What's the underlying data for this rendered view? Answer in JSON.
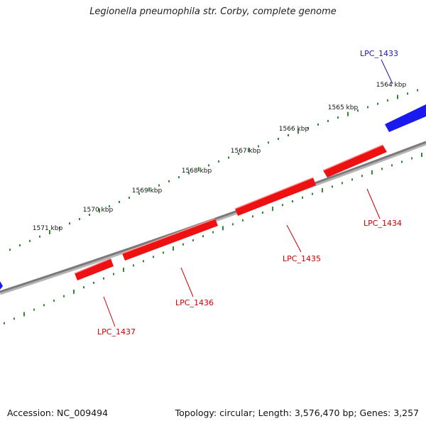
{
  "title": "Legionella pneumophila str. Corby, complete genome",
  "footer": {
    "accession": "Accession: NC_009494",
    "summary": "Topology: circular; Length: 3,576,470 bp; Genes: 3,257"
  },
  "colors": {
    "backbone": "#7a7a7a",
    "forward_gene": "#1a1aee",
    "reverse_gene": "#ee1111",
    "forward_label": "#1a1aaa",
    "reverse_label": "#cc0000",
    "tick_marks": "#2e8b2e"
  },
  "scale_labels": [
    {
      "text": "1564 kbp"
    },
    {
      "text": "1565 kbp"
    },
    {
      "text": "1566 kbp"
    },
    {
      "text": "1567 kbp"
    },
    {
      "text": "1568 kbp"
    },
    {
      "text": "1569 kbp"
    },
    {
      "text": "1570 kbp"
    },
    {
      "text": "1571 kbp"
    }
  ],
  "genes": [
    {
      "name": "LPC_1433",
      "strand": "forward"
    },
    {
      "name": "LPC_1434",
      "strand": "reverse"
    },
    {
      "name": "LPC_1435",
      "strand": "reverse"
    },
    {
      "name": "LPC_1436",
      "strand": "reverse"
    },
    {
      "name": "LPC_1437",
      "strand": "reverse"
    }
  ]
}
